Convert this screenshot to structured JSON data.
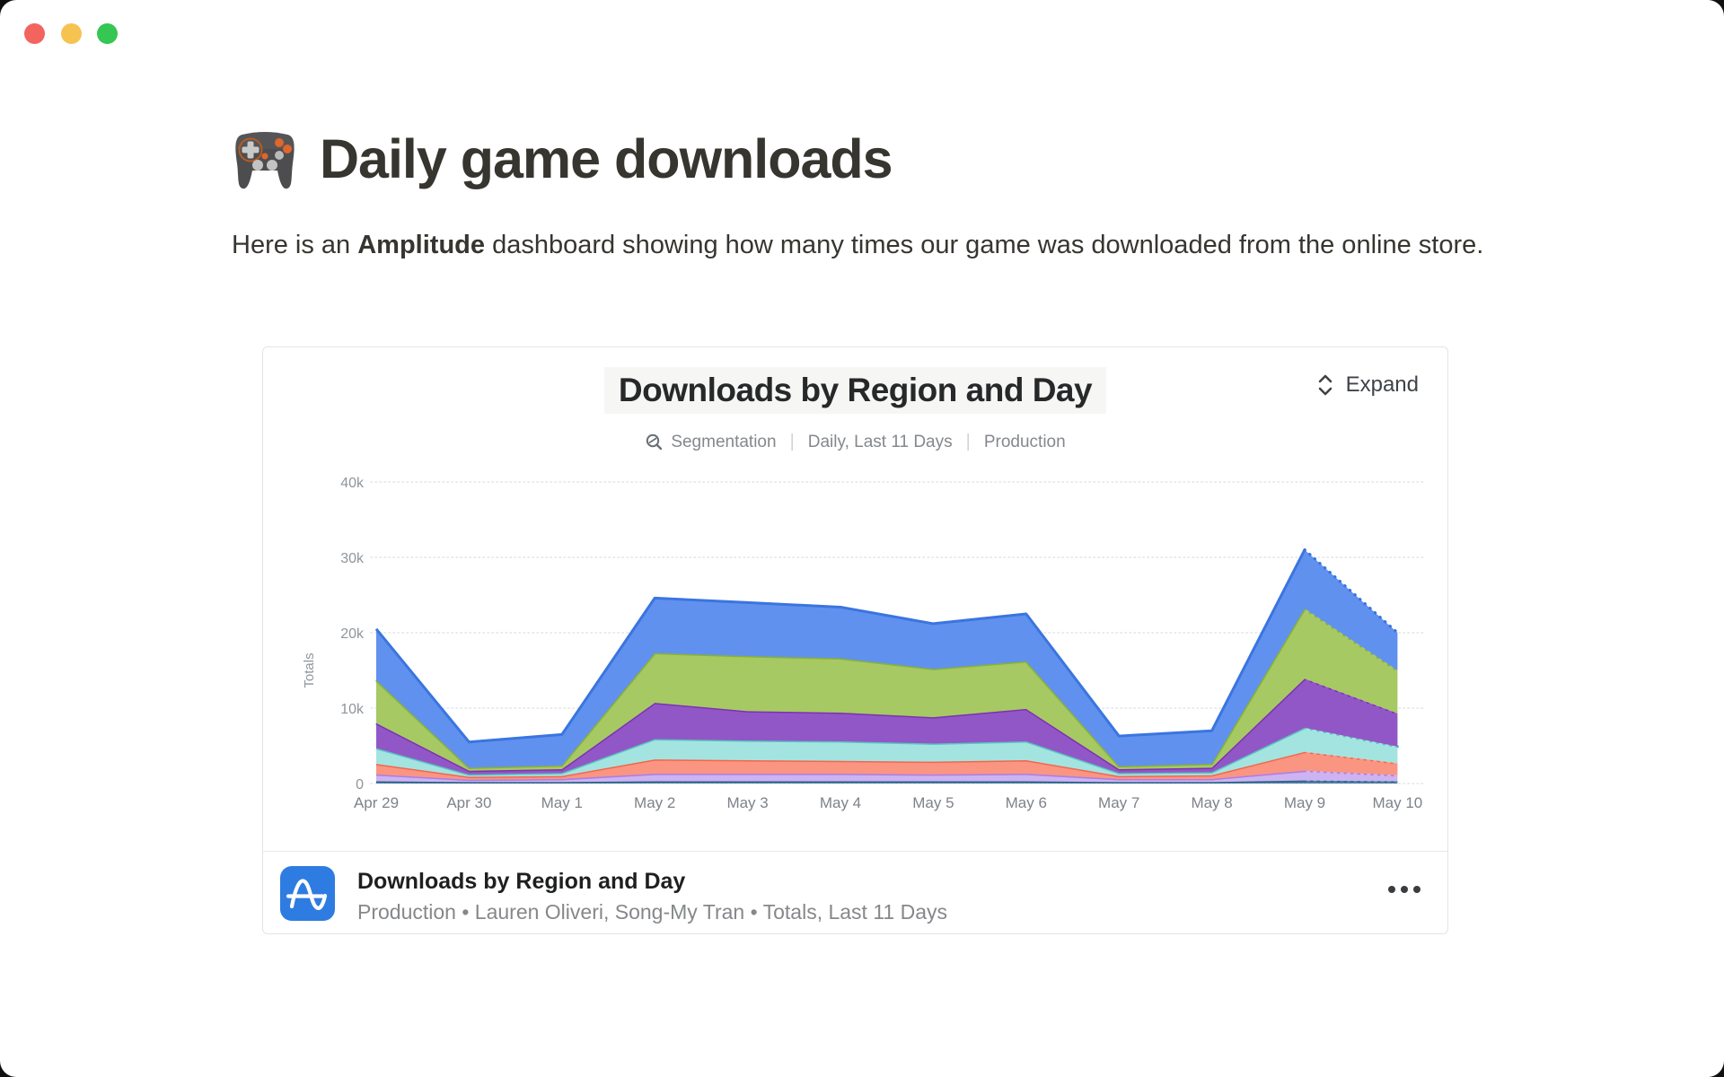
{
  "window": {
    "traffic_lights": [
      {
        "name": "close",
        "color": "#f4645f"
      },
      {
        "name": "minimize",
        "color": "#f6c351"
      },
      {
        "name": "zoom",
        "color": "#35c653"
      }
    ]
  },
  "page": {
    "icon": "🎮",
    "title": "Daily game downloads",
    "intro_prefix": "Here is an ",
    "intro_bold": "Amplitude",
    "intro_suffix": " dashboard showing how many times our game was downloaded from the online store."
  },
  "card": {
    "expand_label": "Expand",
    "title": "Downloads by Region and Day",
    "meta": {
      "segmentation": "Segmentation",
      "range": "Daily, Last 11 Days",
      "environment": "Production"
    },
    "footer": {
      "title": "Downloads by Region and Day",
      "subtitle": "Production • Lauren Oliveri, Song-My Tran • Totals, Last 11 Days"
    }
  },
  "chart_data": {
    "type": "area",
    "stacked": true,
    "title": "Downloads by Region and Day",
    "xlabel": "",
    "ylabel": "Totals",
    "ylim": [
      0,
      40000
    ],
    "y_ticks": [
      "0",
      "10k",
      "20k",
      "30k",
      "40k"
    ],
    "grid": "horizontal-dotted",
    "legend": "none",
    "incomplete_last_segment": true,
    "categories": [
      "Apr 29",
      "Apr 30",
      "May 1",
      "May 2",
      "May 3",
      "May 4",
      "May 5",
      "May 6",
      "May 7",
      "May 8",
      "May 9",
      "May 10"
    ],
    "series": [
      {
        "name": "steel-blue",
        "stroke": "#2d6489",
        "fill": "#4e7fa3",
        "values": [
          300,
          200,
          200,
          300,
          300,
          300,
          300,
          300,
          200,
          200,
          400,
          300
        ]
      },
      {
        "name": "lavender",
        "stroke": "#a87ee8",
        "fill": "#cdb3f2",
        "values": [
          900,
          300,
          400,
          1000,
          1000,
          1000,
          900,
          1000,
          400,
          400,
          1300,
          800
        ]
      },
      {
        "name": "salmon",
        "stroke": "#f4664a",
        "fill": "#fa9582",
        "values": [
          1400,
          400,
          400,
          1900,
          1800,
          1700,
          1700,
          1800,
          400,
          500,
          2500,
          1600
        ]
      },
      {
        "name": "cyan",
        "stroke": "#59c4c0",
        "fill": "#a3e4e1",
        "values": [
          2100,
          300,
          400,
          2700,
          2600,
          2600,
          2400,
          2500,
          400,
          400,
          3200,
          2200
        ]
      },
      {
        "name": "purple",
        "stroke": "#7d30b5",
        "fill": "#9257c6",
        "values": [
          3300,
          500,
          500,
          4800,
          3900,
          3800,
          3500,
          4300,
          500,
          600,
          6500,
          4400
        ]
      },
      {
        "name": "green",
        "stroke": "#8ab32f",
        "fill": "#a6c964",
        "values": [
          5700,
          400,
          500,
          6600,
          7300,
          7200,
          6400,
          6300,
          400,
          500,
          9300,
          5700
        ]
      },
      {
        "name": "blue",
        "stroke": "#3a75e0",
        "fill": "#6191ee",
        "values": [
          6800,
          3400,
          4100,
          7300,
          7100,
          6800,
          6000,
          6300,
          4000,
          4400,
          7800,
          5000
        ]
      }
    ],
    "totals": [
      20500,
      5500,
      6500,
      24600,
      24000,
      23400,
      21200,
      22500,
      6300,
      7000,
      31000,
      20000
    ]
  }
}
